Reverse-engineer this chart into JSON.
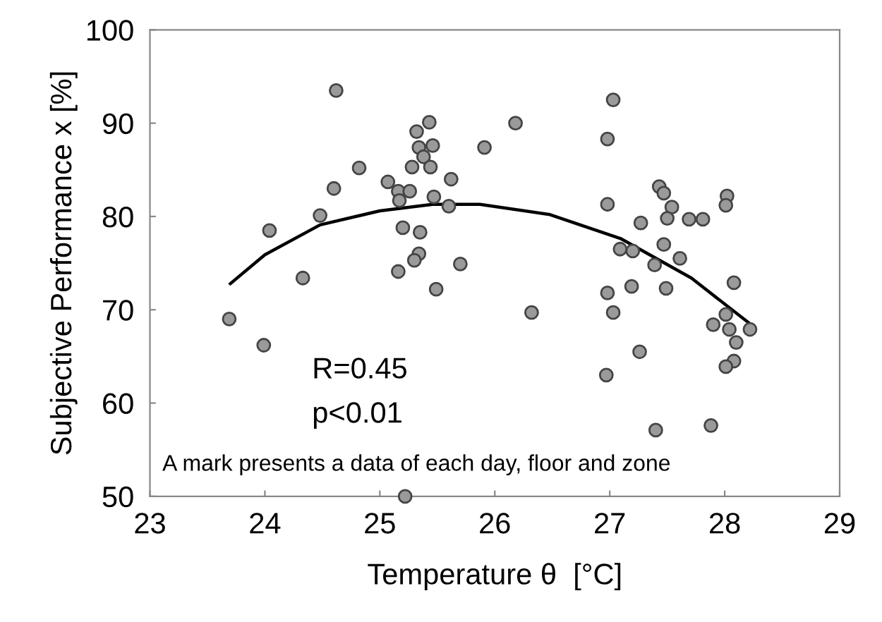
{
  "chart_data": {
    "type": "scatter",
    "xlabel": "Temperature θ  [°C]",
    "ylabel": "Subjective Performance x [%]",
    "xlim": [
      23,
      29
    ],
    "xticks": [
      23,
      24,
      25,
      26,
      27,
      28,
      29
    ],
    "ylim": [
      50,
      100
    ],
    "yticks": [
      50,
      60,
      70,
      80,
      90,
      100
    ],
    "grid": false,
    "legend": false,
    "annotations": [
      "R=0.45",
      "p<0.01",
      "A mark presents a data of each day, floor and zone"
    ],
    "series": [
      {
        "marker": "circle",
        "color": "#9a9a9a",
        "x": [
          24.62,
          25.43,
          25.32,
          25.46,
          25.34,
          25.38,
          25.44,
          25.28,
          25.91,
          24.82,
          24.6,
          25.07,
          25.16,
          25.26,
          25.62,
          25.17,
          25.47,
          25.6,
          24.48,
          24.04,
          25.2,
          25.35,
          25.34,
          25.3,
          25.16,
          25.7,
          24.33,
          25.49,
          23.69,
          23.99,
          25.22,
          26.32,
          26.18,
          27.03,
          26.98,
          26.98,
          27.43,
          27.47,
          27.54,
          27.5,
          27.27,
          27.69,
          27.81,
          28.02,
          28.01,
          27.09,
          27.2,
          27.47,
          27.39,
          27.61,
          28.08,
          27.19,
          27.49,
          26.98,
          27.03,
          28.01,
          27.9,
          28.04,
          28.22,
          28.1,
          28.08,
          28.01,
          27.26,
          26.97,
          27.4,
          27.88
        ],
        "values": [
          93.5,
          90.1,
          89.1,
          87.6,
          87.4,
          86.4,
          85.3,
          85.3,
          87.4,
          85.2,
          83.0,
          83.7,
          82.7,
          82.7,
          84.0,
          81.7,
          82.1,
          81.1,
          80.1,
          78.5,
          78.8,
          78.3,
          76.0,
          75.3,
          74.1,
          74.9,
          73.4,
          72.2,
          69.0,
          66.2,
          50,
          69.7,
          90.0,
          92.5,
          88.3,
          81.3,
          83.2,
          82.5,
          81.0,
          79.8,
          79.3,
          79.7,
          79.7,
          82.2,
          81.2,
          76.5,
          76.3,
          77.0,
          74.8,
          75.5,
          72.9,
          72.5,
          72.3,
          71.8,
          69.7,
          69.5,
          68.4,
          67.9,
          67.9,
          66.5,
          64.5,
          63.9,
          65.5,
          63.0,
          57.1,
          57.6
        ]
      },
      {
        "type": "line",
        "color": "#000000",
        "marker": "none",
        "line_style": "solid",
        "x": [
          23.7,
          24.0,
          24.48,
          25.0,
          25.46,
          25.87,
          26.48,
          27.1,
          27.71,
          28.24
        ],
        "values": [
          72.8,
          75.9,
          79.1,
          80.6,
          81.3,
          81.3,
          80.2,
          77.6,
          73.4,
          68.3
        ]
      }
    ]
  }
}
